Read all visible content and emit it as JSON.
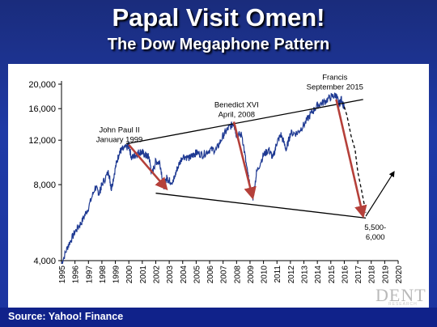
{
  "title": "Papal Visit Omen!",
  "subtitle": "The Dow Megaphone Pattern",
  "source": "Source: Yahoo! Finance",
  "brand": "DENT",
  "brand_sub": "RESEARCH",
  "colors": {
    "background": "#1b34a0",
    "series": "#1f3a93",
    "arrow": "#b5403a",
    "trend": "#000000"
  },
  "chart_data": {
    "type": "line",
    "title": "Papal Visit Omen!",
    "subtitle": "The Dow Megaphone Pattern",
    "yscale": "log",
    "ylim": [
      4000,
      20000
    ],
    "xlim": [
      1995,
      2020
    ],
    "ytick_labels": [
      {
        "value": 20000,
        "label": "20,000"
      },
      {
        "value": 16000,
        "label": "16,000"
      },
      {
        "value": 12000,
        "label": "12,000"
      },
      {
        "value": 8000,
        "label": "8,000"
      },
      {
        "value": 4000,
        "label": "4,000"
      }
    ],
    "xtick_labels": [
      "1995",
      "1996",
      "1997",
      "1998",
      "1999",
      "2000",
      "2001",
      "2002",
      "2003",
      "2004",
      "2005",
      "2006",
      "2007",
      "2008",
      "2009",
      "2010",
      "2011",
      "2012",
      "2013",
      "2014",
      "2015",
      "2016",
      "2017",
      "2018",
      "2019",
      "2020"
    ],
    "series": [
      {
        "x": [
          1995.0,
          1995.5,
          1996.0,
          1996.5,
          1997.0,
          1997.5,
          1997.8,
          1998.0,
          1998.5,
          1998.7,
          1999.0,
          1999.3,
          1999.5,
          1999.9,
          2000.0,
          2000.2,
          2000.5,
          2000.8,
          2001.0,
          2001.3,
          2001.5,
          2001.7,
          2002.0,
          2002.3,
          2002.6,
          2002.8,
          2003.0,
          2003.3,
          2003.6,
          2004.0,
          2004.5,
          2004.8,
          2005.0,
          2005.5,
          2006.0,
          2006.5,
          2007.0,
          2007.4,
          2007.8,
          2008.0,
          2008.4,
          2008.8,
          2009.0,
          2009.2,
          2009.5,
          2010.0,
          2010.4,
          2010.7,
          2011.0,
          2011.3,
          2011.7,
          2012.0,
          2012.5,
          2013.0,
          2013.5,
          2014.0,
          2014.5,
          2015.0,
          2015.4,
          2015.6,
          2015.8,
          2016.0
        ],
        "values": [
          3900,
          4600,
          5200,
          5700,
          6500,
          7800,
          7400,
          8000,
          9000,
          7700,
          9300,
          10800,
          11000,
          11300,
          11500,
          10200,
          10500,
          10800,
          10700,
          10400,
          10300,
          8800,
          9900,
          9800,
          7900,
          8500,
          8300,
          8200,
          9300,
          10400,
          10200,
          10500,
          10700,
          10500,
          11000,
          11000,
          12500,
          13400,
          14000,
          12600,
          12600,
          9000,
          7800,
          7000,
          9000,
          10500,
          11000,
          10200,
          11800,
          12600,
          11000,
          12800,
          12800,
          13800,
          15200,
          16500,
          17000,
          17800,
          18100,
          16700,
          17500,
          16000
        ]
      }
    ],
    "projection": {
      "x": [
        2016.0,
        2016.2,
        2016.5,
        2016.8,
        2017.0,
        2017.3,
        2017.6
      ],
      "values": [
        16300,
        15000,
        12500,
        11000,
        9000,
        7500,
        6200
      ]
    },
    "trendlines": [
      {
        "name": "upper",
        "x": [
          1999.8,
          2017.4
        ],
        "values": [
          11600,
          17400
        ]
      },
      {
        "name": "lower",
        "x": [
          2002.0,
          2017.6
        ],
        "values": [
          7400,
          5900
        ]
      }
    ],
    "arrows": [
      {
        "x": [
          2000.0,
          2002.8
        ],
        "values": [
          11500,
          7700
        ]
      },
      {
        "x": [
          2007.8,
          2009.2
        ],
        "values": [
          14200,
          7100
        ]
      },
      {
        "x": [
          2015.4,
          2017.4
        ],
        "values": [
          17400,
          6000
        ]
      },
      {
        "x": [
          2017.6,
          2019.7
        ],
        "values": [
          6000,
          9000
        ]
      }
    ],
    "annotations": [
      {
        "lines": [
          "John Paul II",
          "January 1999"
        ],
        "x": 1999.3,
        "value": 12900
      },
      {
        "lines": [
          "Benedict XVI",
          "April, 2008"
        ],
        "x": 2008.0,
        "value": 16200
      },
      {
        "lines": [
          "Francis",
          "September 2015"
        ],
        "x": 2015.3,
        "value": 20800
      },
      {
        "lines": [
          "5,500-",
          "6,000"
        ],
        "x": 2018.3,
        "value": 5300
      }
    ]
  }
}
